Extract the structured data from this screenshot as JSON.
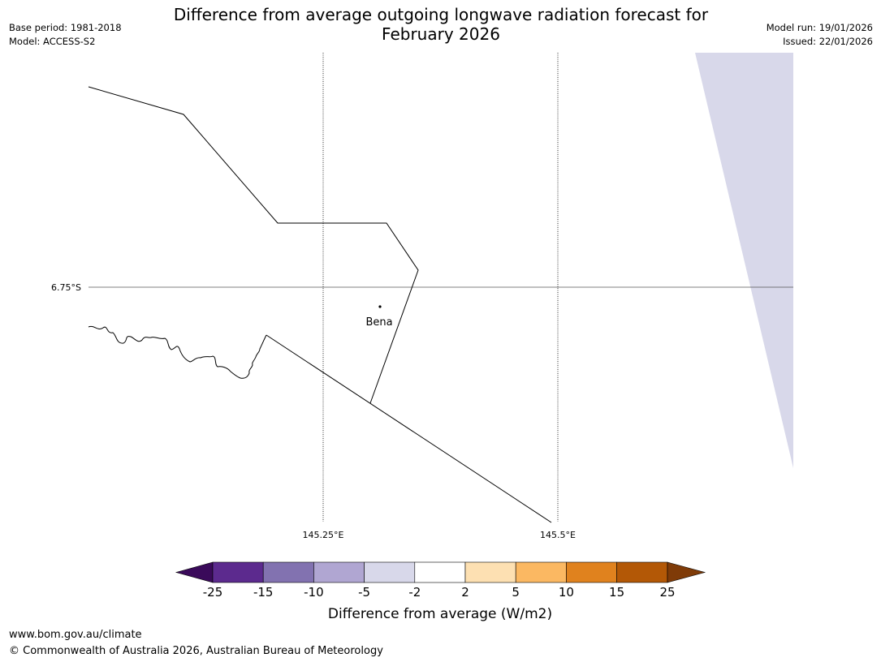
{
  "header": {
    "title_line1": "Difference from average outgoing longwave radiation forecast for",
    "title_line2": "February 2026",
    "base_period": "Base period: 1981-2018",
    "model": "Model: ACCESS-S2",
    "model_run": "Model run: 19/01/2026",
    "issued": "Issued: 22/01/2026"
  },
  "map": {
    "lat_label": "6.75°S",
    "lon_labels": [
      "145.25°E",
      "145.5°E"
    ],
    "place_label": "Bena",
    "shaded_region_color": "#d8d8ea"
  },
  "colorbar": {
    "title": "Difference from average (W/m2)",
    "tick_labels": [
      "-25",
      "-15",
      "-10",
      "-5",
      "-2",
      "2",
      "5",
      "10",
      "15",
      "25"
    ],
    "colors": [
      "#3a0a5a",
      "#5c2a8e",
      "#8272b0",
      "#b0a6d2",
      "#d8d8ea",
      "#ffffff",
      "#fde0b2",
      "#fbb862",
      "#e0821e",
      "#b35806",
      "#7f3b08"
    ]
  },
  "footer": {
    "url": "www.bom.gov.au/climate",
    "copyright": "© Commonwealth of Australia 2026, Australian Bureau of Meteorology"
  }
}
